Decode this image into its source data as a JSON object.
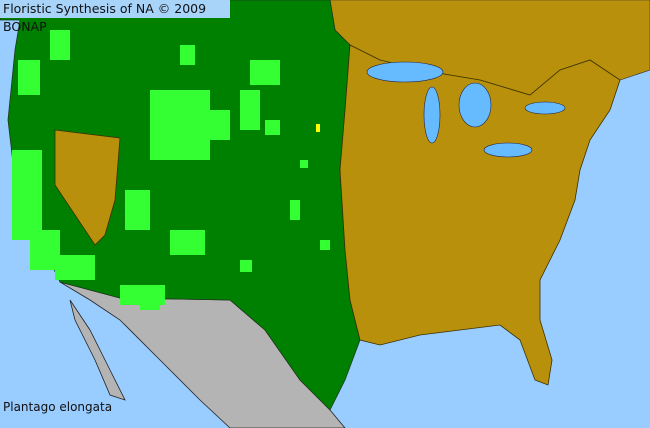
{
  "header": {
    "title": "Floristic Synthesis of NA © 2009 BONAP"
  },
  "map": {
    "species": "Plantago elongata",
    "colors": {
      "water": "#99ccff",
      "present_state": "#008000",
      "present_county": "#33ff33",
      "not_present": "#b8900c",
      "outside_range": "#b4b4b4",
      "rare_marker": "#ffff00"
    }
  }
}
